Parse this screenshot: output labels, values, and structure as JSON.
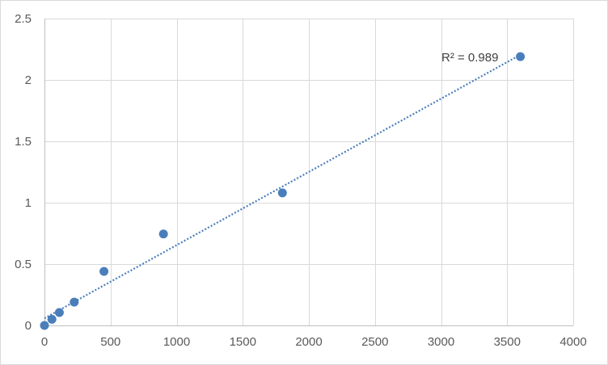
{
  "chart_data": {
    "type": "scatter",
    "title": "",
    "xlabel": "",
    "ylabel": "",
    "xlim": [
      0,
      4000
    ],
    "ylim": [
      0,
      2.5
    ],
    "x_ticks": [
      0,
      500,
      1000,
      1500,
      2000,
      2500,
      3000,
      3500,
      4000
    ],
    "y_ticks": [
      0,
      0.5,
      1,
      1.5,
      2,
      2.5
    ],
    "x_tick_labels": [
      "0",
      "500",
      "1000",
      "1500",
      "2000",
      "2500",
      "3000",
      "3500",
      "4000"
    ],
    "y_tick_labels": [
      "0",
      "0.5",
      "1",
      "1.5",
      "2",
      "2.5"
    ],
    "grid": true,
    "legend": "none",
    "series": [
      {
        "x": [
          0,
          56.25,
          112.5,
          225,
          450,
          900,
          1800,
          3600
        ],
        "y": [
          0.0,
          0.05,
          0.105,
          0.19,
          0.44,
          0.745,
          1.08,
          2.19
        ],
        "color": "#4a7ebb"
      }
    ],
    "trendline": {
      "kind": "linear",
      "style": "dotted",
      "color": "#4a7ebb",
      "x_range": [
        0,
        3600
      ],
      "y_start": 0.058,
      "y_end": 2.205
    },
    "annotation": {
      "text": "R² = 0.989"
    }
  }
}
